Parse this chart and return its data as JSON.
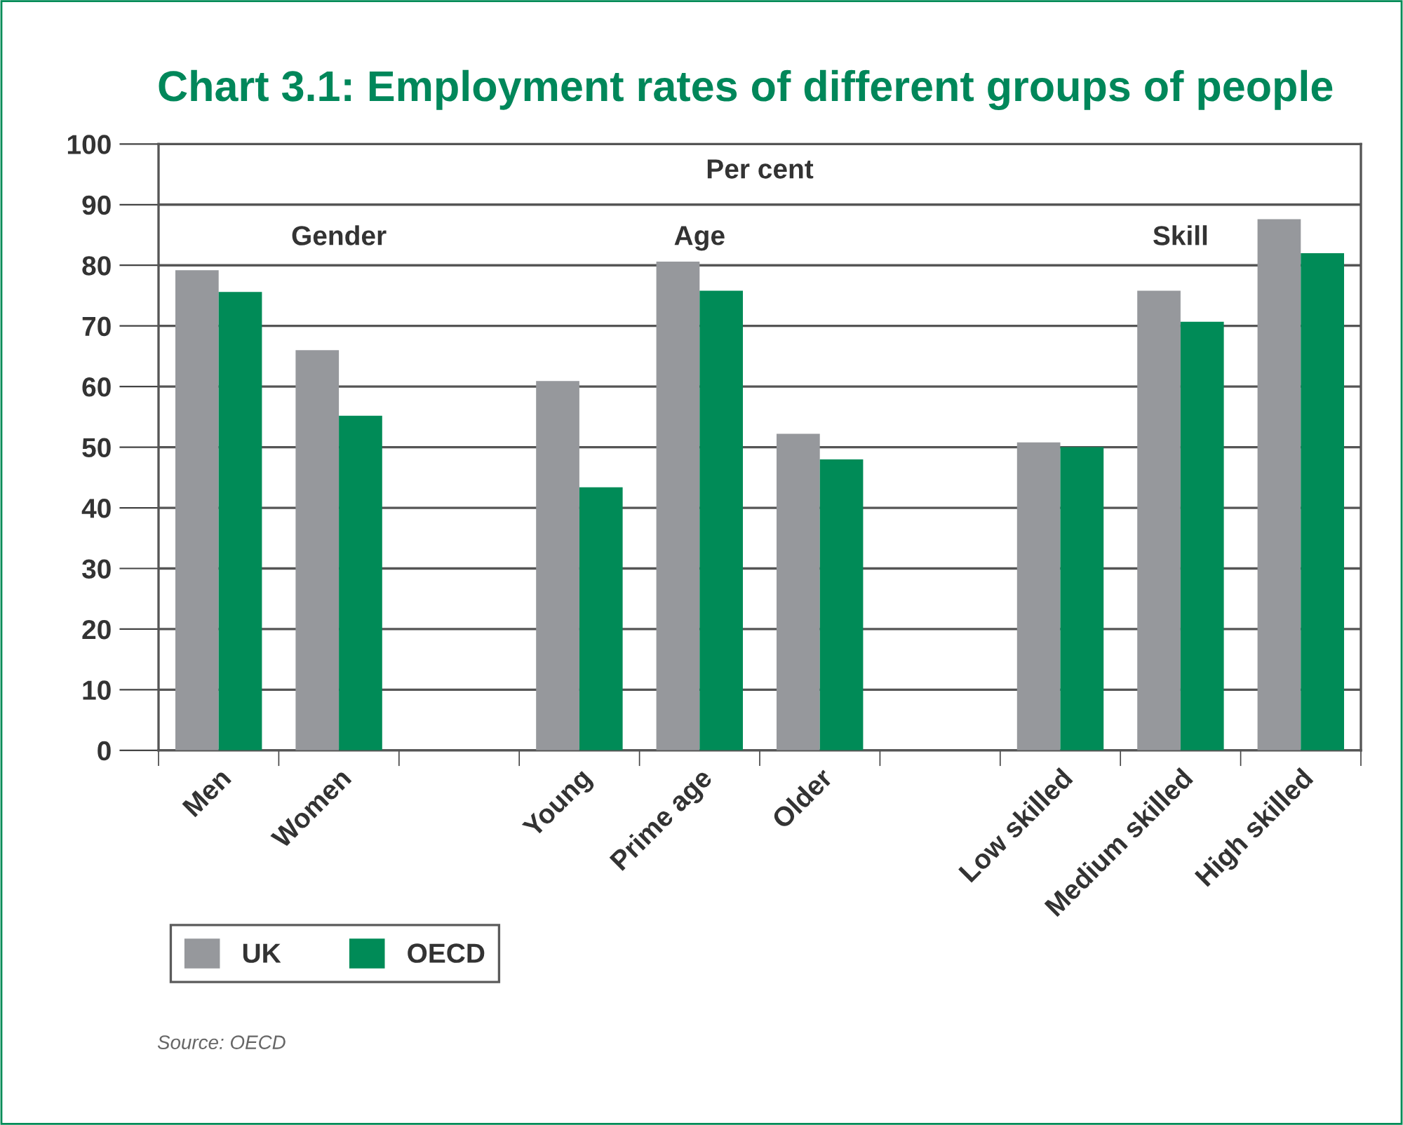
{
  "chart_data": {
    "type": "bar",
    "title": "Chart 3.1: Employment rates of different groups of people",
    "categories": [
      "Men",
      "Women",
      null,
      "Young",
      "Prime age",
      "Older",
      null,
      "Low skilled",
      "Medium skilled",
      "High skilled"
    ],
    "series": [
      {
        "name": "UK",
        "color": "#96989c",
        "values": [
          79.2,
          66.0,
          null,
          60.9,
          80.6,
          52.2,
          null,
          50.8,
          75.8,
          87.6
        ]
      },
      {
        "name": "OECD",
        "color": "#008b57",
        "values": [
          75.6,
          55.2,
          null,
          43.4,
          75.8,
          48.0,
          null,
          50.0,
          70.7,
          82.0
        ]
      }
    ],
    "ylim": [
      0,
      100
    ],
    "yticks": [
      0,
      10,
      20,
      30,
      40,
      50,
      60,
      70,
      80,
      90,
      100
    ],
    "grid": "y",
    "legend": "bottom left",
    "annotations": [
      "Per cent",
      "Gender",
      "Age",
      "Skill",
      "Source: OECD"
    ]
  }
}
